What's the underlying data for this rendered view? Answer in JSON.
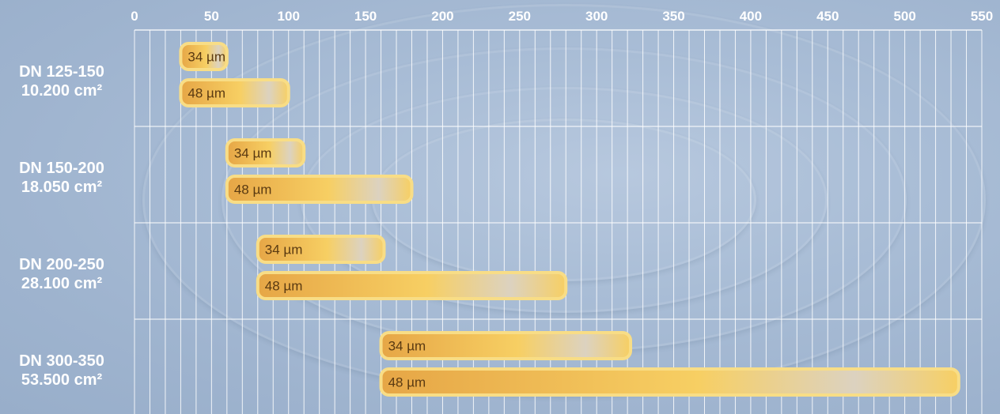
{
  "chart_data": {
    "type": "bar",
    "orientation": "horizontal",
    "title": "",
    "xlabel": "",
    "ylabel": "",
    "xlim": [
      0,
      550
    ],
    "x_ticks": [
      0,
      50,
      100,
      150,
      200,
      250,
      300,
      350,
      400,
      450,
      500,
      550
    ],
    "x_axis_position": "top",
    "minor_grid_step": 10,
    "grid": true,
    "legend": "none",
    "categories": [
      {
        "name": "DN 125-150",
        "area": "10.200 cm²"
      },
      {
        "name": "DN 150-200",
        "area": "18.050 cm²"
      },
      {
        "name": "DN 200-250",
        "area": "28.100 cm²"
      },
      {
        "name": "DN 300-350",
        "area": "53.500 cm²"
      }
    ],
    "series": [
      {
        "name": "34 µm",
        "ranges": [
          [
            30,
            60
          ],
          [
            60,
            110
          ],
          [
            80,
            162
          ],
          [
            160,
            322
          ]
        ]
      },
      {
        "name": "48 µm",
        "ranges": [
          [
            30,
            100
          ],
          [
            60,
            180
          ],
          [
            80,
            280
          ],
          [
            160,
            535
          ]
        ]
      }
    ],
    "colors": {
      "bar_fill_dark": "#e6a646",
      "bar_fill_light": "#f7cf63",
      "bar_highlight": "#dcd2c0",
      "bar_border": "#f8dd86",
      "grid": "#ffffff",
      "label_text": "#ffffff",
      "bar_text": "#5a3a12",
      "background": "#a9bdd6"
    }
  }
}
